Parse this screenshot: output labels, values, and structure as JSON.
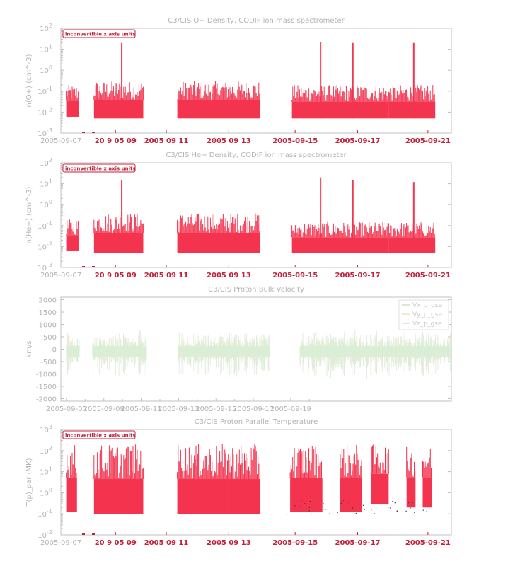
{
  "chart_data": [
    {
      "type": "line",
      "title": "C3/CIS  O+ Density, CODIF ion mass spectrometer",
      "ylabel": "n(O+) (cm^-3)",
      "yscale": "log",
      "ylim": [
        0.001,
        100
      ],
      "y_ticks": [
        {
          "value": 0.001,
          "mant": "10",
          "exp": "-3"
        },
        {
          "value": 0.01,
          "mant": "10",
          "exp": "-2"
        },
        {
          "value": 0.1,
          "mant": "10",
          "exp": "-1"
        },
        {
          "value": 1,
          "mant": "10",
          "exp": "0"
        },
        {
          "value": 10,
          "mant": "10",
          "exp": "1"
        },
        {
          "value": 100,
          "mant": "10",
          "exp": "2"
        }
      ],
      "badge": "inconvertible x axis units",
      "first_tick": "2005-09-07",
      "overlap_ticks": [
        {
          "label": "20  9 05 09",
          "slot": 0.14
        },
        {
          "label": "2005 09 11",
          "slot": 0.27
        },
        {
          "label": "2005 09 13",
          "slot": 0.43
        },
        {
          "label": "2005-09-15",
          "slot": 0.6
        },
        {
          "label": "2005-09-17",
          "slot": 0.76
        },
        {
          "label": "2005-09-21",
          "slot": 0.94
        }
      ],
      "series": [
        {
          "color": "#f4344e",
          "gaps": [
            [
              0.2,
              1.5
            ],
            [
              4.3,
              6.2
            ]
          ],
          "blocks": [
            {
              "x": [
                0.0,
                0.7
              ],
              "low": 0.006,
              "high": 0.2
            },
            {
              "x": [
                1.55,
                4.3
              ],
              "low": 0.005,
              "high": 0.3
            },
            {
              "x": [
                6.2,
                10.8
              ],
              "low": 0.005,
              "high": 0.3
            },
            {
              "x": [
                12.6,
                18.0
              ],
              "low": 0.005,
              "high": 0.2
            },
            {
              "x": [
                18.0,
                20.6
              ],
              "low": 0.005,
              "high": 0.2
            }
          ],
          "spikes": [
            {
              "x": 3.1,
              "peak": 20
            },
            {
              "x": 14.2,
              "peak": 22
            },
            {
              "x": 16.0,
              "peak": 20
            },
            {
              "x": 19.4,
              "peak": 20
            }
          ]
        }
      ]
    },
    {
      "type": "line",
      "title": "C3/CIS  He+ Density, CODIF ion mass spectrometer",
      "ylabel": "n(He+) (cm^-3)",
      "yscale": "log",
      "ylim": [
        0.001,
        100
      ],
      "y_ticks": [
        {
          "value": 0.001,
          "mant": "10",
          "exp": "-3"
        },
        {
          "value": 0.01,
          "mant": "10",
          "exp": "-2"
        },
        {
          "value": 0.1,
          "mant": "10",
          "exp": "-1"
        },
        {
          "value": 1,
          "mant": "10",
          "exp": "0"
        },
        {
          "value": 10,
          "mant": "10",
          "exp": "1"
        },
        {
          "value": 100,
          "mant": "10",
          "exp": "2"
        }
      ],
      "badge": "inconvertible x axis units",
      "first_tick": "2005-09-07",
      "overlap_ticks": [
        {
          "label": "20  9 05 09",
          "slot": 0.14
        },
        {
          "label": "2005 09 11",
          "slot": 0.27
        },
        {
          "label": "2005 09 13",
          "slot": 0.43
        },
        {
          "label": "2005-09-15",
          "slot": 0.6
        },
        {
          "label": "2005-09-17",
          "slot": 0.76
        },
        {
          "label": "2005-09-21",
          "slot": 0.94
        }
      ],
      "series": [
        {
          "color": "#f4344e",
          "gaps": [
            [
              0.2,
              1.5
            ],
            [
              4.3,
              6.2
            ]
          ],
          "blocks": [
            {
              "x": [
                0.0,
                0.7
              ],
              "low": 0.006,
              "high": 0.2
            },
            {
              "x": [
                1.55,
                4.3
              ],
              "low": 0.005,
              "high": 0.4
            },
            {
              "x": [
                6.2,
                10.8
              ],
              "low": 0.005,
              "high": 0.4
            },
            {
              "x": [
                12.6,
                18.0
              ],
              "low": 0.005,
              "high": 0.15
            },
            {
              "x": [
                18.0,
                20.6
              ],
              "low": 0.005,
              "high": 0.15
            }
          ],
          "spikes": [
            {
              "x": 3.1,
              "peak": 15
            },
            {
              "x": 14.2,
              "peak": 20
            },
            {
              "x": 16.0,
              "peak": 15
            },
            {
              "x": 19.4,
              "peak": 12
            }
          ]
        }
      ]
    },
    {
      "type": "scatter",
      "title": "C3/CIS  Proton Bulk Velocity",
      "ylabel": "km/s",
      "yscale": "linear",
      "ylim": [
        -2100,
        2100
      ],
      "y_ticks": [
        {
          "value": -2000,
          "label": "-2000"
        },
        {
          "value": -1500,
          "label": "-1500"
        },
        {
          "value": -1000,
          "label": "-1000"
        },
        {
          "value": -500,
          "label": "-500"
        },
        {
          "value": 0,
          "label": "0"
        },
        {
          "value": 500,
          "label": "500"
        },
        {
          "value": 1000,
          "label": "1000"
        },
        {
          "value": 1500,
          "label": "1500"
        },
        {
          "value": 2000,
          "label": "2000"
        }
      ],
      "x_ticks": [
        "2005-09-07",
        "2005-09-09",
        "2005-09-11",
        "2005-09-13",
        "2005-09-15",
        "2005-09-17",
        "2005-09-19"
      ],
      "legend_placement": "top-right",
      "series": [
        {
          "name": "Vx_p_gse",
          "color": "#dbe7d2"
        },
        {
          "name": "Vy_p_gse",
          "color": "#f0ead2"
        },
        {
          "name": "Vz_p_gse",
          "color": "#d6f0d6"
        }
      ]
    },
    {
      "type": "line",
      "title": "C3/CIS  Proton Parallel Temperature",
      "ylabel": "T(p)_par (MK)",
      "yscale": "log",
      "ylim": [
        0.01,
        1000
      ],
      "y_ticks": [
        {
          "value": 0.01,
          "mant": "10",
          "exp": "-2"
        },
        {
          "value": 0.1,
          "mant": "10",
          "exp": "-1"
        },
        {
          "value": 1,
          "mant": "10",
          "exp": "0"
        },
        {
          "value": 10,
          "mant": "10",
          "exp": "1"
        },
        {
          "value": 100,
          "mant": "10",
          "exp": "2"
        },
        {
          "value": 1000,
          "mant": "10",
          "exp": "3"
        }
      ],
      "badge": "inconvertible x axis units",
      "first_tick": "2005-09-07",
      "overlap_ticks": [
        {
          "label": "20  9 05 09",
          "slot": 0.14
        },
        {
          "label": "2005 09 11",
          "slot": 0.27
        },
        {
          "label": "2005 09 13",
          "slot": 0.43
        },
        {
          "label": "2005-09-15",
          "slot": 0.6
        },
        {
          "label": "2005-09-17",
          "slot": 0.76
        },
        {
          "label": "2005-09-21",
          "slot": 0.94
        }
      ],
      "series": [
        {
          "color": "#f4344e",
          "gaps": [
            [
              0.2,
              1.5
            ],
            [
              4.3,
              6.2
            ]
          ],
          "blocks": [
            {
              "x": [
                0.0,
                0.6
              ],
              "low": 0.12,
              "high": 200
            },
            {
              "x": [
                1.55,
                4.3
              ],
              "low": 0.1,
              "high": 200
            },
            {
              "x": [
                6.2,
                9.0
              ],
              "low": 0.1,
              "high": 200
            },
            {
              "x": [
                9.0,
                10.8
              ],
              "low": 0.1,
              "high": 200
            },
            {
              "x": [
                12.5,
                14.3
              ],
              "low": 0.12,
              "high": 200
            },
            {
              "x": [
                15.3,
                16.5
              ],
              "low": 0.12,
              "high": 200
            },
            {
              "x": [
                17.0,
                18.0
              ],
              "low": 0.3,
              "high": 200
            },
            {
              "x": [
                19.0,
                19.5
              ],
              "low": 0.2,
              "high": 150
            },
            {
              "x": [
                19.9,
                20.4
              ],
              "low": 0.2,
              "high": 150
            }
          ],
          "spikes": []
        }
      ]
    }
  ]
}
